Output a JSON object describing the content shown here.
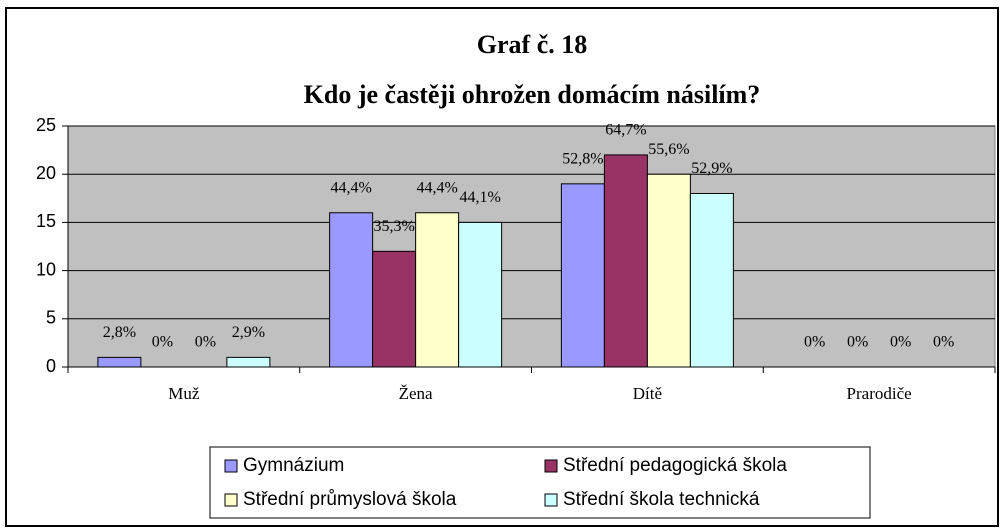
{
  "chart_data": {
    "type": "bar",
    "title": "Graf č. 18",
    "subtitle": "Kdo je častěji ohrožen domácím násilím?",
    "categories": [
      "Muž",
      "Žena",
      "Dítě",
      "Prarodiče"
    ],
    "series": [
      {
        "name": "Gymnázium",
        "color": "#9999ff",
        "values": [
          1,
          16,
          19,
          0
        ],
        "percent_labels": [
          "2,8%",
          "44,4%",
          "52,8%",
          "0%"
        ]
      },
      {
        "name": "Střední pedagogická škola",
        "color": "#993366",
        "values": [
          0,
          12,
          22,
          0
        ],
        "percent_labels": [
          "0%",
          "35,3%",
          "64,7%",
          "0%"
        ]
      },
      {
        "name": "Střední průmyslová škola",
        "color": "#ffffcc",
        "values": [
          0,
          16,
          20,
          0
        ],
        "percent_labels": [
          "0%",
          "44,4%",
          "55,6%",
          "0%"
        ]
      },
      {
        "name": "Střední škola technická",
        "color": "#ccffff",
        "values": [
          1,
          15,
          18,
          0
        ],
        "percent_labels": [
          "2,9%",
          "44,1%",
          "52,9%",
          "0%"
        ]
      }
    ],
    "ylim": [
      0,
      25
    ],
    "yticks": [
      0,
      5,
      10,
      15,
      20,
      25
    ],
    "grid": true,
    "legend": "bottom"
  }
}
